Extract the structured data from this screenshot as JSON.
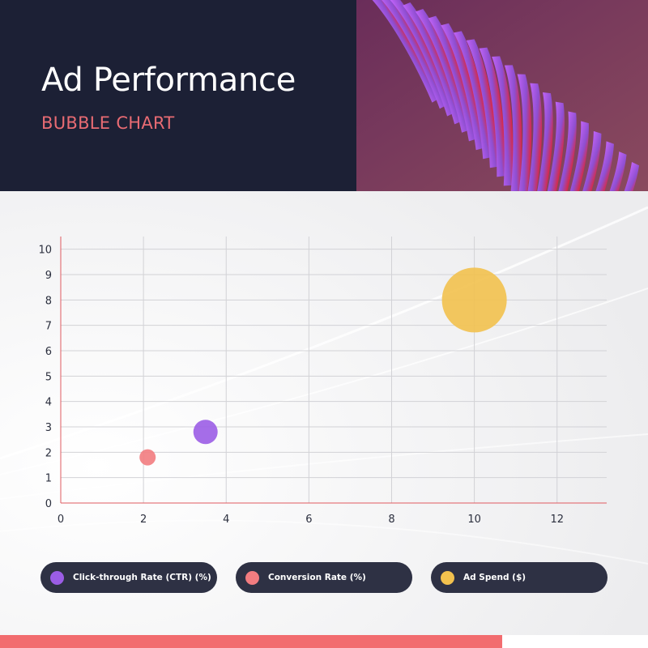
{
  "header": {
    "title": "Ad Performance",
    "subtitle": "BUBBLE CHART"
  },
  "chart_data": {
    "type": "scatter",
    "title": "Ad Performance",
    "subtitle": "BUBBLE CHART",
    "xlim": [
      0,
      13.2
    ],
    "ylim": [
      0,
      10.5
    ],
    "x_ticks": [
      0,
      2,
      4,
      6,
      8,
      10,
      12
    ],
    "y_ticks": [
      0,
      1,
      2,
      3,
      4,
      5,
      6,
      7,
      8,
      9,
      10
    ],
    "grid": true,
    "legend_position": "bottom",
    "series": [
      {
        "name": "Click-through Rate (CTR) (%)",
        "color": "#9b5de5",
        "points": [
          {
            "x": 3.5,
            "y": 2.8,
            "r": 15
          }
        ]
      },
      {
        "name": "Conversion Rate (%)",
        "color": "#f27c80",
        "points": [
          {
            "x": 2.1,
            "y": 1.8,
            "r": 10
          }
        ]
      },
      {
        "name": "Ad Spend ($)",
        "color": "#f2c14e",
        "points": [
          {
            "x": 10,
            "y": 8,
            "r": 40
          }
        ]
      }
    ]
  }
}
